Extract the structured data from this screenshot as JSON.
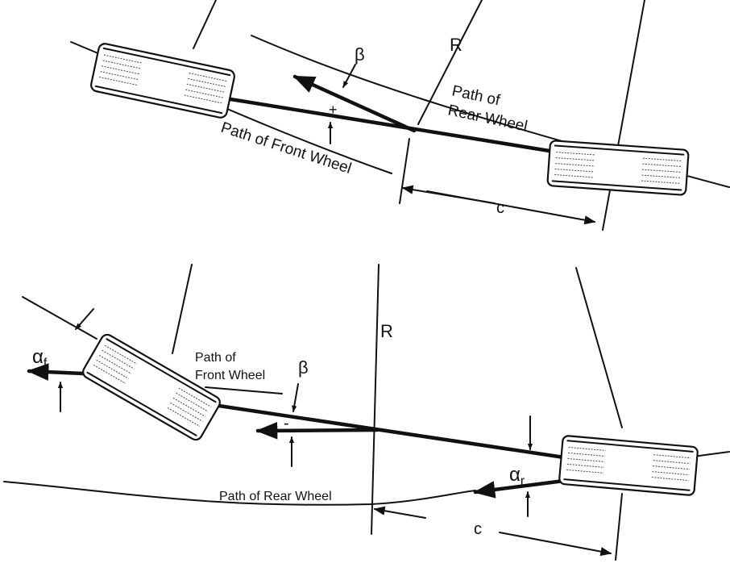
{
  "top_panel": {
    "beta_label": "β",
    "plus_sign": "+",
    "radius_label": "R",
    "rear_path_label_line1": "Path of",
    "rear_path_label_line2": "Rear Wheel",
    "front_path_label": "Path of Front Wheel",
    "c_label": "c"
  },
  "bottom_panel": {
    "alpha_f_base": "α",
    "alpha_f_sub": "f",
    "front_path_label_line1": "Path of",
    "front_path_label_line2": "Front Wheel",
    "beta_label": "β",
    "minus_sign": "-",
    "radius_label": "R",
    "alpha_r_base": "α",
    "alpha_r_sub": "r",
    "rear_path_label": "Path of Rear Wheel",
    "c_label": "c"
  }
}
